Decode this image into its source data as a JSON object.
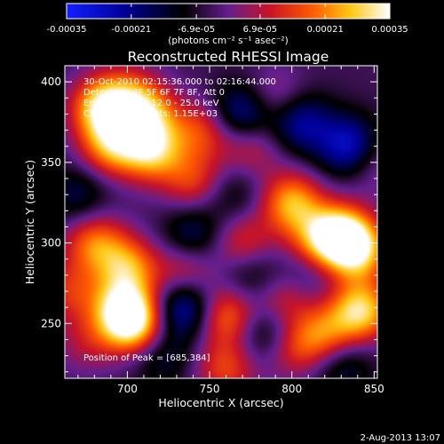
{
  "chart_data": {
    "type": "heatmap",
    "title": "Reconstructed RHESSI Image",
    "xlabel": "Heliocentric X (arcsec)",
    "ylabel": "Heliocentric Y (arcsec)",
    "xlim": [
      662,
      852
    ],
    "ylim": [
      216,
      410
    ],
    "x_ticks": [
      700,
      750,
      800,
      850
    ],
    "y_ticks": [
      250,
      300,
      350,
      400
    ],
    "colorbar": {
      "unit_label": "(photons cm⁻² s⁻¹ asec⁻²)",
      "min": -0.00035,
      "max": 0.00035,
      "tick_values": [
        -0.00035,
        -0.00021,
        -6.9e-05,
        6.9e-05,
        0.00021,
        0.00035
      ],
      "tick_labels": [
        "-0.00035",
        "-0.00021",
        "-6.9e-05",
        "6.9e-05",
        "0.00021",
        "0.00035"
      ]
    },
    "annotations": [
      "30-Oct-2010 02:15:36.000 to 02:16:44.000",
      "Detectors: 4F 5F 6F 7F 8F, Att 0",
      "Energy Range: 12.0 - 25.0 keV",
      "Clean  Total counts: 1.15E+03"
    ],
    "peak_label": "Position of Peak = [685,384]",
    "peak": [
      685,
      384
    ],
    "sources": [
      {
        "x": 685,
        "y": 384,
        "flux": 0.00033
      },
      {
        "x": 710,
        "y": 380,
        "flux": 0.0003
      },
      {
        "x": 690,
        "y": 360,
        "flux": 0.00025
      },
      {
        "x": 715,
        "y": 357,
        "flux": 0.00029
      },
      {
        "x": 745,
        "y": 370,
        "flux": 0.00018
      },
      {
        "x": 775,
        "y": 360,
        "flux": 0.00014
      },
      {
        "x": 740,
        "y": 338,
        "flux": 0.00017
      },
      {
        "x": 800,
        "y": 325,
        "flux": 0.00028
      },
      {
        "x": 830,
        "y": 305,
        "flux": 0.00033
      },
      {
        "x": 840,
        "y": 295,
        "flux": 0.00028
      },
      {
        "x": 815,
        "y": 300,
        "flux": 0.0002
      },
      {
        "x": 770,
        "y": 300,
        "flux": 0.00017
      },
      {
        "x": 680,
        "y": 300,
        "flux": 0.00022
      },
      {
        "x": 700,
        "y": 285,
        "flux": 0.00025
      },
      {
        "x": 735,
        "y": 282,
        "flux": 0.00016
      },
      {
        "x": 665,
        "y": 270,
        "flux": 0.00015
      },
      {
        "x": 698,
        "y": 258,
        "flux": 0.00033
      },
      {
        "x": 705,
        "y": 248,
        "flux": 0.00026
      },
      {
        "x": 760,
        "y": 255,
        "flux": 0.00024
      },
      {
        "x": 795,
        "y": 265,
        "flux": 0.00015
      },
      {
        "x": 820,
        "y": 242,
        "flux": 0.00022
      },
      {
        "x": 842,
        "y": 258,
        "flux": 0.00033
      },
      {
        "x": 760,
        "y": 222,
        "flux": 0.00018
      },
      {
        "x": 800,
        "y": 235,
        "flux": 0.00016
      },
      {
        "x": 675,
        "y": 238,
        "flux": 0.0001
      },
      {
        "x": 850,
        "y": 350,
        "flux": 0.0001
      },
      {
        "x": 790,
        "y": 390,
        "flux": 0.00012
      },
      {
        "x": 765,
        "y": 330,
        "flux": -9e-05
      },
      {
        "x": 835,
        "y": 360,
        "flux": -0.00025
      },
      {
        "x": 770,
        "y": 380,
        "flux": -0.00022
      },
      {
        "x": 805,
        "y": 375,
        "flux": -0.0002
      },
      {
        "x": 740,
        "y": 305,
        "flux": -0.00015
      },
      {
        "x": 775,
        "y": 280,
        "flux": -0.00012
      },
      {
        "x": 735,
        "y": 260,
        "flux": -0.00025
      },
      {
        "x": 720,
        "y": 230,
        "flux": -0.00012
      },
      {
        "x": 785,
        "y": 244,
        "flux": -0.00016
      },
      {
        "x": 810,
        "y": 283,
        "flux": -0.0001
      },
      {
        "x": 670,
        "y": 330,
        "flux": -0.00012
      },
      {
        "x": 830,
        "y": 225,
        "flux": -0.00014
      },
      {
        "x": 700,
        "y": 395,
        "flux": 0.0001
      }
    ]
  },
  "footer_date": "2-Aug-2013 13:07"
}
